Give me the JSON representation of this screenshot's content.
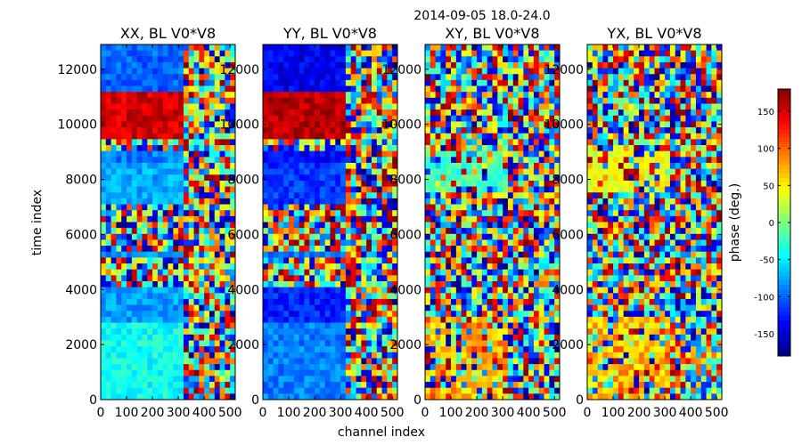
{
  "figure": {
    "suptitle": "2014-09-05 18.0-24.0",
    "xlabel": "channel index",
    "ylabel": "time index",
    "colorbar_label": "phase (deg.)"
  },
  "chart_data": {
    "type": "heatmap",
    "colormap": "jet",
    "panels": [
      {
        "title": "XX, BL V0*V8",
        "pol": "XX"
      },
      {
        "title": "YY, BL V0*V8",
        "pol": "YY"
      },
      {
        "title": "XY, BL V0*V8",
        "pol": "XY"
      },
      {
        "title": "YX, BL V0*V8",
        "pol": "YX"
      }
    ],
    "xlim": [
      0,
      520
    ],
    "ylim": [
      0,
      12900
    ],
    "xticks": [
      0,
      100,
      200,
      300,
      400,
      500
    ],
    "yticks": [
      0,
      2000,
      4000,
      6000,
      8000,
      10000,
      12000
    ],
    "color_range": [
      -180,
      180
    ],
    "colorbar_ticks": [
      150,
      100,
      50,
      0,
      -50,
      -100,
      -150
    ],
    "time_blocks": [
      {
        "y0": 0,
        "y1": 2900,
        "xx_phase": -40,
        "yy_phase": -90
      },
      {
        "y0": 2900,
        "y1": 4100,
        "xx_phase": -80,
        "yy_phase": -125
      },
      {
        "y0": 4100,
        "y1": 4300,
        "xx_phase": null,
        "yy_phase": null
      },
      {
        "y0": 4300,
        "y1": 5200,
        "xx_phase": null,
        "yy_phase": null
      },
      {
        "y0": 5200,
        "y1": 5400,
        "xx_phase": -85,
        "yy_phase": -95
      },
      {
        "y0": 5400,
        "y1": 7100,
        "xx_phase": null,
        "yy_phase": null
      },
      {
        "y0": 7100,
        "y1": 8500,
        "xx_phase": -75,
        "yy_phase": -115
      },
      {
        "y0": 8500,
        "y1": 9000,
        "xx_phase": -90,
        "yy_phase": -135
      },
      {
        "y0": 9000,
        "y1": 9500,
        "xx_phase": null,
        "yy_phase": null
      },
      {
        "y0": 9500,
        "y1": 11200,
        "xx_phase": 150,
        "yy_phase": 160
      },
      {
        "y0": 11200,
        "y1": 12900,
        "xx_phase": -100,
        "yy_phase": -140
      }
    ],
    "noisy_channel_start": 310
  }
}
